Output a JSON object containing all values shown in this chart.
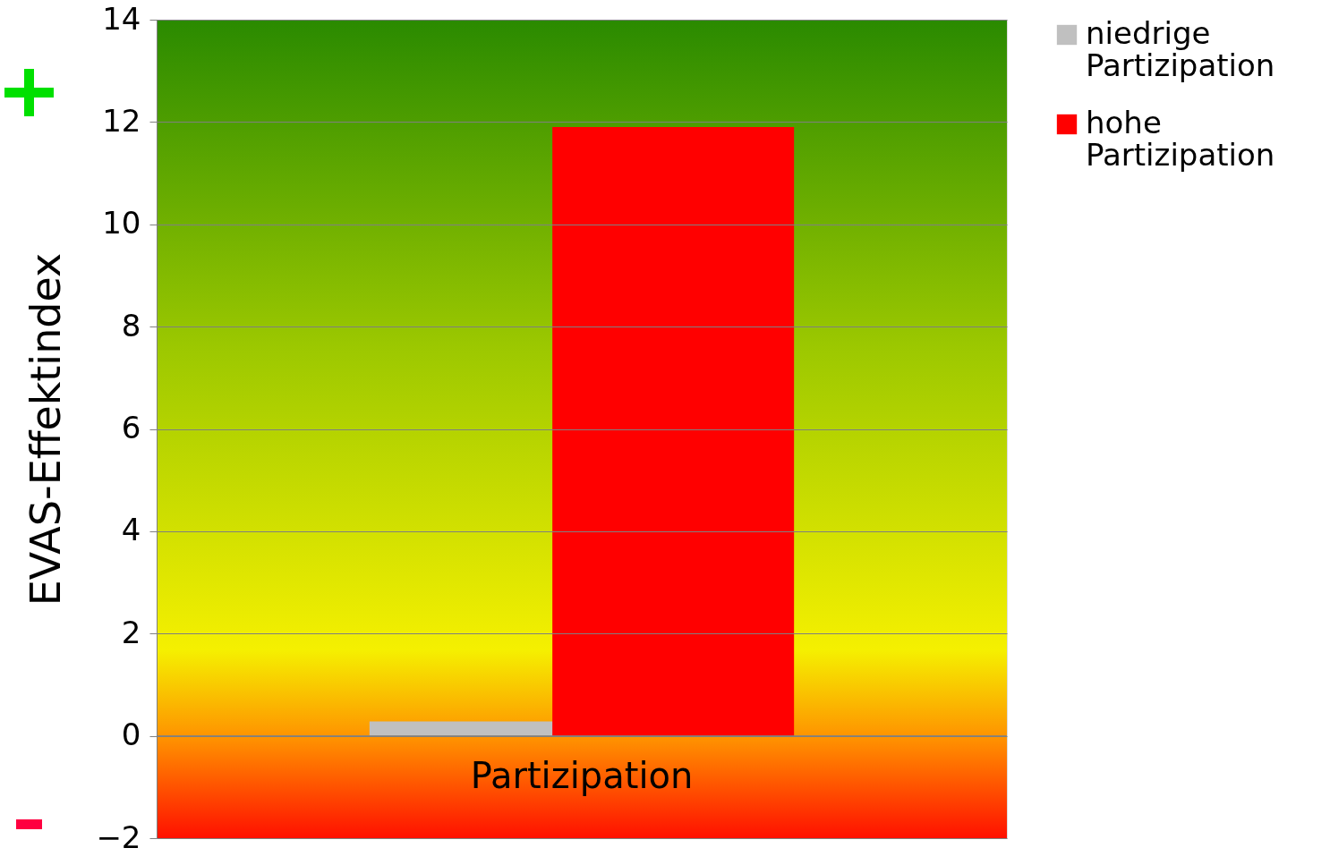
{
  "chart_data": {
    "type": "bar",
    "ylabel": "EVAS-Effektindex",
    "categories": [
      "Partizipation"
    ],
    "series": [
      {
        "name": "niedrige Partizipation",
        "color": "#c0c0c0",
        "values": [
          0.28
        ]
      },
      {
        "name": "hohe Partizipation",
        "color": "#ff0000",
        "values": [
          11.9
        ]
      }
    ],
    "ylim": [
      -2,
      14
    ],
    "yticks": [
      -2,
      0,
      2,
      4,
      6,
      8,
      10,
      12,
      14
    ],
    "grid": "y",
    "legend": "right"
  }
}
